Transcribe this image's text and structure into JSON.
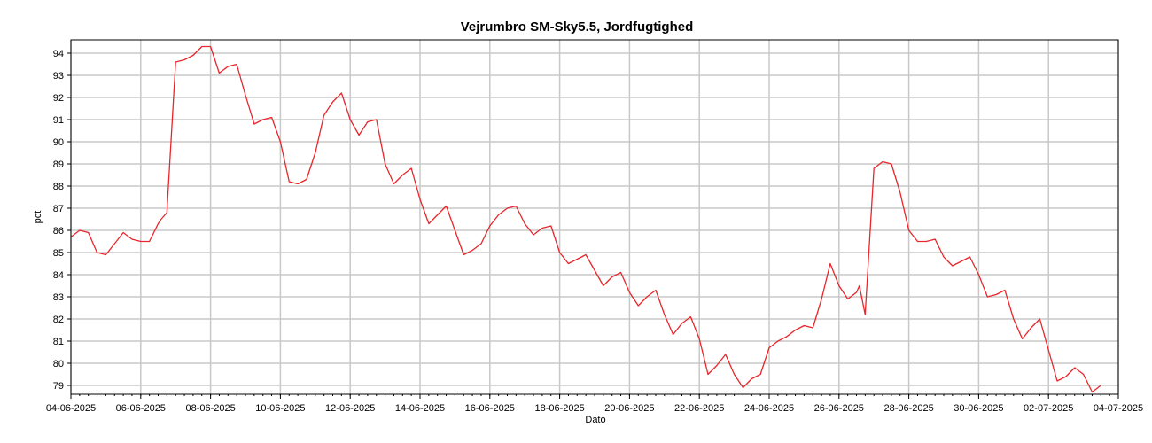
{
  "chart_data": {
    "type": "line",
    "title": "Vejrumbro SM-Sky5.5, Jordfugtighed",
    "xlabel": "Dato",
    "ylabel": "pct",
    "ylim": [
      78.6,
      94.6
    ],
    "yticks": [
      79,
      80,
      81,
      82,
      83,
      84,
      85,
      86,
      87,
      88,
      89,
      90,
      91,
      92,
      93,
      94
    ],
    "xlim": [
      "2025-06-04",
      "2025-07-04"
    ],
    "xticks": [
      "04-06-2025",
      "06-06-2025",
      "08-06-2025",
      "10-06-2025",
      "12-06-2025",
      "14-06-2025",
      "16-06-2025",
      "18-06-2025",
      "20-06-2025",
      "22-06-2025",
      "24-06-2025",
      "26-06-2025",
      "28-06-2025",
      "30-06-2025",
      "02-07-2025",
      "04-07-2025"
    ],
    "grid": true,
    "series": [
      {
        "color": "#e8262b",
        "x": [
          "2025-06-04 00:00",
          "2025-06-04 06:00",
          "2025-06-04 12:00",
          "2025-06-04 18:00",
          "2025-06-05 00:00",
          "2025-06-05 06:00",
          "2025-06-05 12:00",
          "2025-06-05 18:00",
          "2025-06-06 00:00",
          "2025-06-06 06:00",
          "2025-06-06 12:00",
          "2025-06-06 14:00",
          "2025-06-06 18:00",
          "2025-06-07 00:00",
          "2025-06-07 06:00",
          "2025-06-07 12:00",
          "2025-06-07 18:00",
          "2025-06-08 00:00",
          "2025-06-08 06:00",
          "2025-06-08 12:00",
          "2025-06-08 18:00",
          "2025-06-09 00:00",
          "2025-06-09 06:00",
          "2025-06-09 12:00",
          "2025-06-09 18:00",
          "2025-06-10 00:00",
          "2025-06-10 06:00",
          "2025-06-10 12:00",
          "2025-06-10 18:00",
          "2025-06-11 00:00",
          "2025-06-11 06:00",
          "2025-06-11 12:00",
          "2025-06-11 18:00",
          "2025-06-12 00:00",
          "2025-06-12 06:00",
          "2025-06-12 12:00",
          "2025-06-12 18:00",
          "2025-06-13 00:00",
          "2025-06-13 06:00",
          "2025-06-13 12:00",
          "2025-06-13 18:00",
          "2025-06-14 00:00",
          "2025-06-14 06:00",
          "2025-06-14 12:00",
          "2025-06-14 18:00",
          "2025-06-15 00:00",
          "2025-06-15 06:00",
          "2025-06-15 12:00",
          "2025-06-15 18:00",
          "2025-06-16 00:00",
          "2025-06-16 06:00",
          "2025-06-16 12:00",
          "2025-06-16 18:00",
          "2025-06-17 00:00",
          "2025-06-17 06:00",
          "2025-06-17 12:00",
          "2025-06-17 18:00",
          "2025-06-18 00:00",
          "2025-06-18 06:00",
          "2025-06-18 12:00",
          "2025-06-18 18:00",
          "2025-06-19 00:00",
          "2025-06-19 06:00",
          "2025-06-19 12:00",
          "2025-06-19 18:00",
          "2025-06-20 00:00",
          "2025-06-20 06:00",
          "2025-06-20 12:00",
          "2025-06-20 18:00",
          "2025-06-21 00:00",
          "2025-06-21 06:00",
          "2025-06-21 12:00",
          "2025-06-21 18:00",
          "2025-06-22 00:00",
          "2025-06-22 06:00",
          "2025-06-22 12:00",
          "2025-06-22 18:00",
          "2025-06-23 00:00",
          "2025-06-23 06:00",
          "2025-06-23 12:00",
          "2025-06-23 18:00",
          "2025-06-24 00:00",
          "2025-06-24 06:00",
          "2025-06-24 12:00",
          "2025-06-24 18:00",
          "2025-06-25 00:00",
          "2025-06-25 06:00",
          "2025-06-25 12:00",
          "2025-06-25 18:00",
          "2025-06-26 00:00",
          "2025-06-26 06:00",
          "2025-06-26 12:00",
          "2025-06-26 14:00",
          "2025-06-26 18:00",
          "2025-06-27 00:00",
          "2025-06-27 06:00",
          "2025-06-27 12:00",
          "2025-06-27 18:00",
          "2025-06-28 00:00",
          "2025-06-28 06:00",
          "2025-06-28 12:00",
          "2025-06-28 18:00",
          "2025-06-29 00:00",
          "2025-06-29 06:00",
          "2025-06-29 12:00",
          "2025-06-29 18:00",
          "2025-06-30 00:00",
          "2025-06-30 06:00",
          "2025-06-30 12:00",
          "2025-06-30 18:00",
          "2025-07-01 00:00",
          "2025-07-01 06:00",
          "2025-07-01 12:00",
          "2025-07-01 18:00",
          "2025-07-02 00:00",
          "2025-07-02 06:00",
          "2025-07-02 12:00",
          "2025-07-02 18:00",
          "2025-07-03 00:00",
          "2025-07-03 06:00",
          "2025-07-03 12:00"
        ],
        "values": [
          85.7,
          86.0,
          85.9,
          85.0,
          84.9,
          85.4,
          85.9,
          85.6,
          85.5,
          85.5,
          86.3,
          86.5,
          86.8,
          93.6,
          93.7,
          93.9,
          94.3,
          94.3,
          93.1,
          93.4,
          93.5,
          92.1,
          90.8,
          91.0,
          91.1,
          90.0,
          88.2,
          88.1,
          88.3,
          89.5,
          91.2,
          91.8,
          92.2,
          91.0,
          90.3,
          90.9,
          91.0,
          89.0,
          88.1,
          88.5,
          88.8,
          87.4,
          86.3,
          86.7,
          87.1,
          86.0,
          84.9,
          85.1,
          85.4,
          86.2,
          86.7,
          87.0,
          87.1,
          86.3,
          85.8,
          86.1,
          86.2,
          85.0,
          84.5,
          84.7,
          84.9,
          84.2,
          83.5,
          83.9,
          84.1,
          83.2,
          82.6,
          83.0,
          83.3,
          82.2,
          81.3,
          81.8,
          82.1,
          81.1,
          79.5,
          79.9,
          80.4,
          79.5,
          78.9,
          79.3,
          79.5,
          80.7,
          81.0,
          81.2,
          81.5,
          81.7,
          81.6,
          82.9,
          84.5,
          83.5,
          82.9,
          83.2,
          83.5,
          82.2,
          88.8,
          89.1,
          89.0,
          87.7,
          86.0,
          85.5,
          85.5,
          85.6,
          84.8,
          84.4,
          84.6,
          84.8,
          84.0,
          83.0,
          83.1,
          83.3,
          82.0,
          81.1,
          81.6,
          82.0,
          80.6,
          79.2,
          79.4,
          79.8,
          79.5,
          78.7,
          79.0
        ]
      }
    ]
  }
}
